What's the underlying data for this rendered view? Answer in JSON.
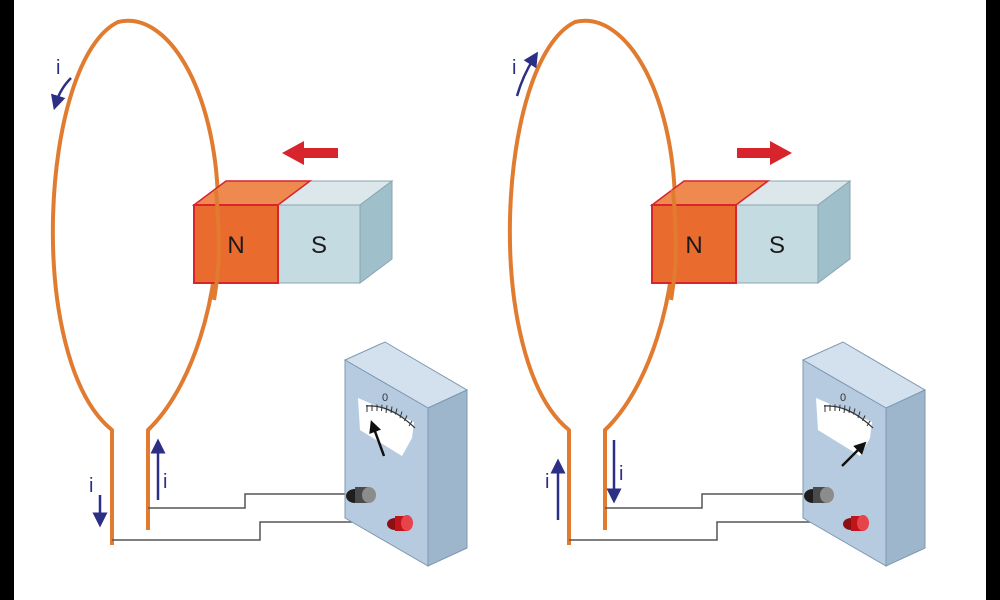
{
  "colors": {
    "background": "#000000",
    "panel": "#ffffff",
    "loop_wire": "#e07b30",
    "magnet_north": "#ea6b2e",
    "magnet_north_edge": "#d8242c",
    "magnet_south": "#c4dbe2",
    "motion_arrow": "#d8242c",
    "current_arrow": "#2b2f86",
    "meter_body": "#b7cbe0",
    "lead_wire": "#555555"
  },
  "panels": [
    {
      "magnet": {
        "north_label": "N",
        "south_label": "S"
      },
      "motion_arrow": {
        "direction": "left",
        "icon": "arrow-left-icon"
      },
      "current_labels": [
        "i",
        "i",
        "i"
      ],
      "meter": {
        "zero_label": "0",
        "needle_deflection": "left"
      }
    },
    {
      "magnet": {
        "north_label": "N",
        "south_label": "S"
      },
      "motion_arrow": {
        "direction": "right",
        "icon": "arrow-right-icon"
      },
      "current_labels": [
        "i",
        "i",
        "i"
      ],
      "meter": {
        "zero_label": "0",
        "needle_deflection": "right"
      }
    }
  ]
}
